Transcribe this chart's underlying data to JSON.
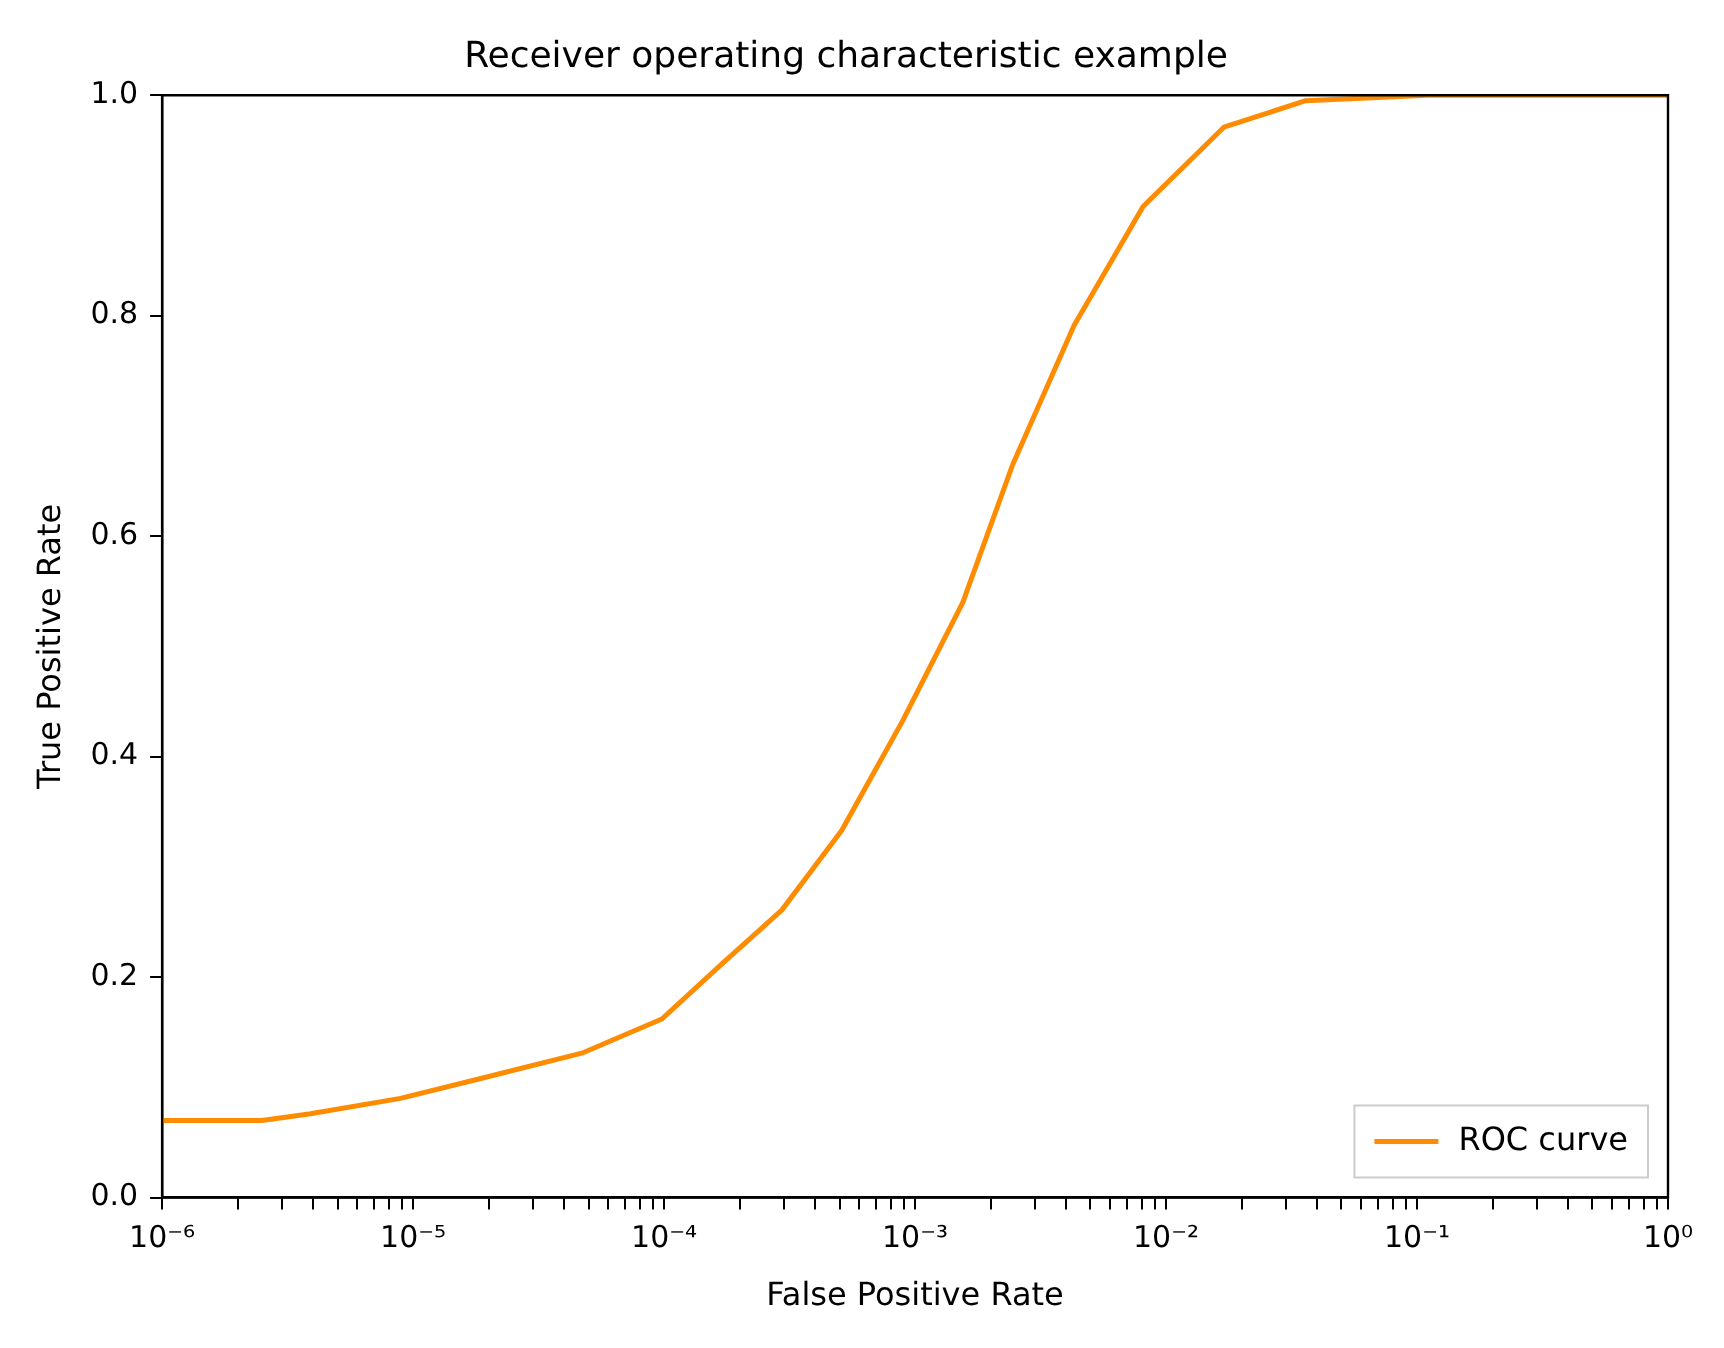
{
  "chart_data": {
    "type": "line",
    "title": "Receiver operating characteristic example",
    "xlabel": "False Positive Rate",
    "ylabel": "True Positive Rate",
    "log": "x",
    "xlim": [
      1e-06,
      1
    ],
    "ylim": [
      0,
      1
    ],
    "xticks": [
      {
        "value": 1e-06,
        "label": "10⁻⁶"
      },
      {
        "value": 2e-06,
        "label": null
      },
      {
        "value": 3e-06,
        "label": null
      },
      {
        "value": 4e-06,
        "label": null
      },
      {
        "value": 5e-06,
        "label": null
      },
      {
        "value": 6e-06,
        "label": null
      },
      {
        "value": 7e-06,
        "label": null
      },
      {
        "value": 8e-06,
        "label": null
      },
      {
        "value": 9e-06,
        "label": null
      },
      {
        "value": 1e-05,
        "label": "10⁻⁵"
      },
      {
        "value": 2e-05,
        "label": null
      },
      {
        "value": 3e-05,
        "label": null
      },
      {
        "value": 4e-05,
        "label": null
      },
      {
        "value": 5e-05,
        "label": null
      },
      {
        "value": 6e-05,
        "label": null
      },
      {
        "value": 7e-05,
        "label": null
      },
      {
        "value": 8e-05,
        "label": null
      },
      {
        "value": 9e-05,
        "label": null
      },
      {
        "value": 0.0001,
        "label": "10⁻⁴"
      },
      {
        "value": 0.0002,
        "label": null
      },
      {
        "value": 0.0003,
        "label": null
      },
      {
        "value": 0.0004,
        "label": null
      },
      {
        "value": 0.0005,
        "label": null
      },
      {
        "value": 0.0006,
        "label": null
      },
      {
        "value": 0.0007,
        "label": null
      },
      {
        "value": 0.0008,
        "label": null
      },
      {
        "value": 0.0009,
        "label": null
      },
      {
        "value": 0.001,
        "label": "10⁻³"
      },
      {
        "value": 0.002,
        "label": null
      },
      {
        "value": 0.003,
        "label": null
      },
      {
        "value": 0.004,
        "label": null
      },
      {
        "value": 0.005,
        "label": null
      },
      {
        "value": 0.006,
        "label": null
      },
      {
        "value": 0.007,
        "label": null
      },
      {
        "value": 0.008,
        "label": null
      },
      {
        "value": 0.009,
        "label": null
      },
      {
        "value": 0.01,
        "label": "10⁻²"
      },
      {
        "value": 0.02,
        "label": null
      },
      {
        "value": 0.03,
        "label": null
      },
      {
        "value": 0.04,
        "label": null
      },
      {
        "value": 0.05,
        "label": null
      },
      {
        "value": 0.06,
        "label": null
      },
      {
        "value": 0.07,
        "label": null
      },
      {
        "value": 0.08,
        "label": null
      },
      {
        "value": 0.09,
        "label": null
      },
      {
        "value": 0.1,
        "label": "10⁻¹"
      },
      {
        "value": 0.2,
        "label": null
      },
      {
        "value": 0.3,
        "label": null
      },
      {
        "value": 0.4,
        "label": null
      },
      {
        "value": 0.5,
        "label": null
      },
      {
        "value": 0.6,
        "label": null
      },
      {
        "value": 0.7,
        "label": null
      },
      {
        "value": 0.8,
        "label": null
      },
      {
        "value": 0.9,
        "label": null
      },
      {
        "value": 1,
        "label": "10⁰"
      }
    ],
    "yticks": [
      {
        "value": 0,
        "label": "0.0"
      },
      {
        "value": 0.2,
        "label": "0.2"
      },
      {
        "value": 0.4,
        "label": "0.4"
      },
      {
        "value": 0.6,
        "label": "0.6"
      },
      {
        "value": 0.8,
        "label": "0.8"
      },
      {
        "value": 1,
        "label": "1.0"
      }
    ],
    "grid": false,
    "legend": "bottom right",
    "marker": "none",
    "line_style": "solid",
    "series": [
      {
        "name": "ROC curve",
        "color": "#ff8c00",
        "x": [
          1e-06,
          2.5e-06,
          3.9e-06,
          8.9e-06,
          1.86e-05,
          4.7e-05,
          9.8e-05,
          0.00017,
          0.000295,
          0.00051,
          0.00089,
          0.00155,
          0.00245,
          0.0043,
          0.0081,
          0.017,
          0.036,
          0.11,
          1
        ],
        "values": [
          0.07,
          0.07,
          0.076,
          0.09,
          0.108,
          0.131,
          0.162,
          0.212,
          0.261,
          0.333,
          0.432,
          0.54,
          0.665,
          0.791,
          0.899,
          0.971,
          0.995,
          1,
          1
        ]
      }
    ]
  }
}
